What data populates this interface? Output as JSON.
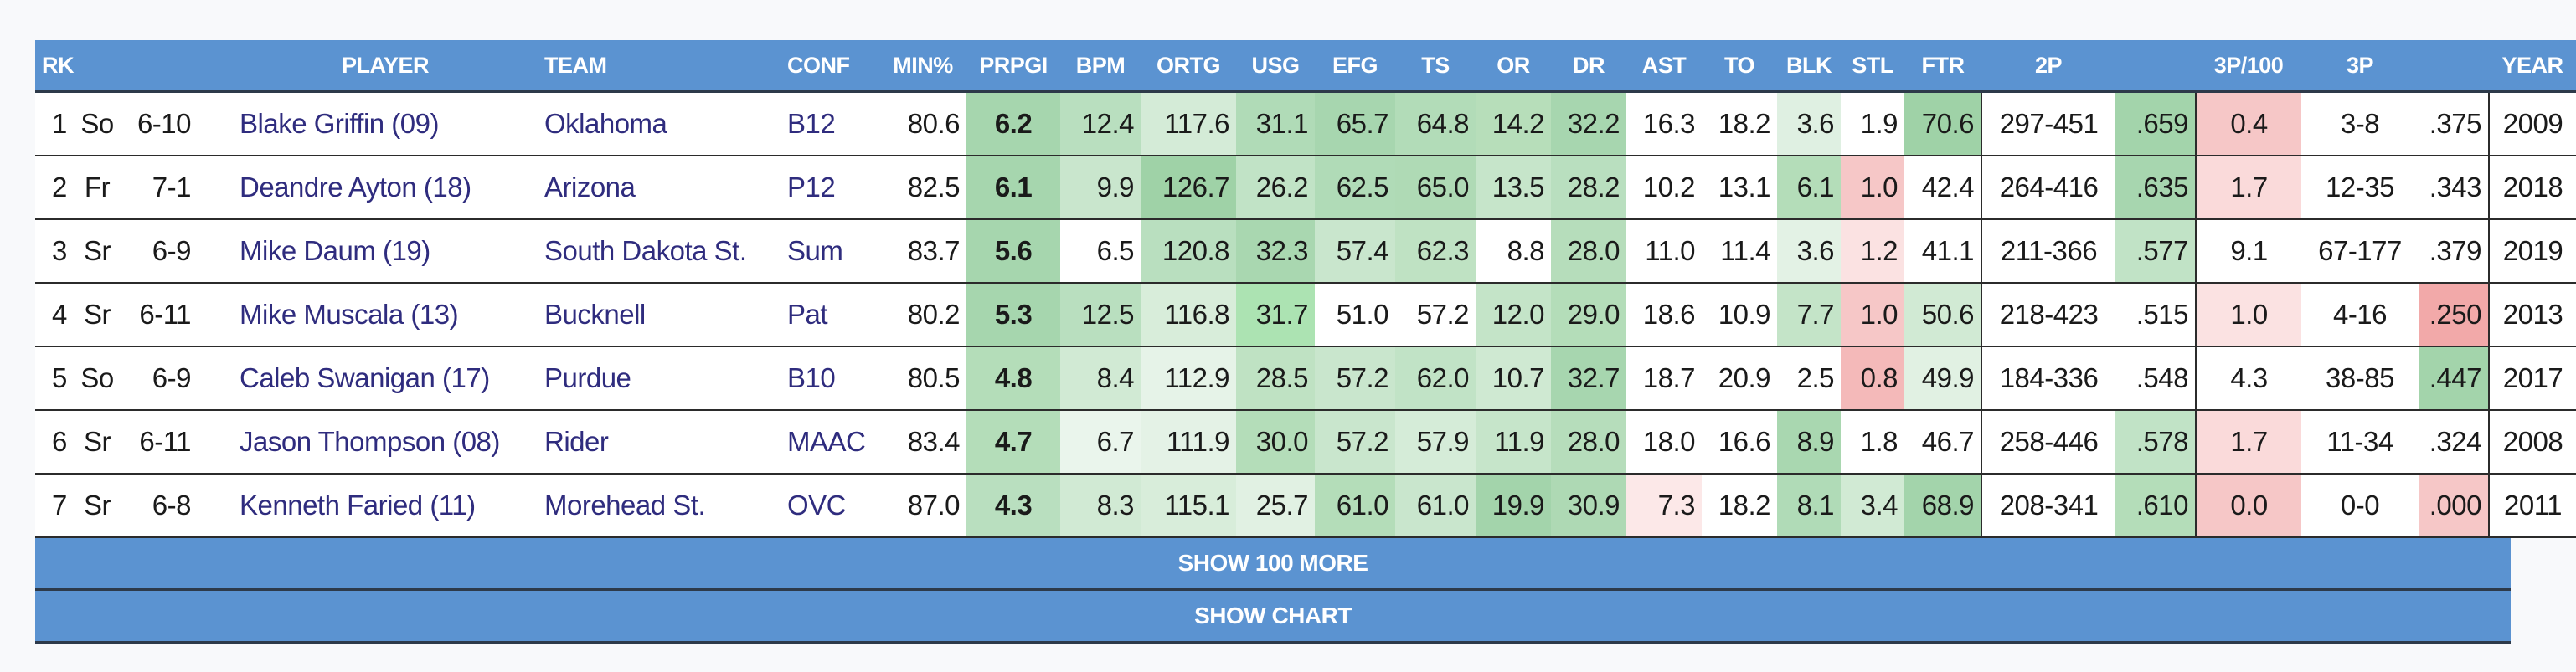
{
  "headers": [
    "RK",
    "PLAYER",
    "TEAM",
    "CONF",
    "MIN%",
    "PRPGI",
    "BPM",
    "ORTG",
    "USG",
    "EFG",
    "TS",
    "OR",
    "DR",
    "AST",
    "TO",
    "BLK",
    "STL",
    "FTR",
    "2P",
    "",
    "3P/100",
    "3P",
    "",
    "YEAR"
  ],
  "rows": [
    {
      "rk": "1",
      "cls": "So",
      "ht": "6-10",
      "player": "Blake Griffin (09)",
      "team": "Oklahoma",
      "conf": "B12",
      "min": "80.6",
      "prpg": "6.2",
      "bpm": "12.4",
      "ortg": "117.6",
      "usg": "31.1",
      "efg": "65.7",
      "ts": "64.8",
      "or": "14.2",
      "dr": "32.2",
      "ast": "16.3",
      "to": "18.2",
      "blk": "3.6",
      "stl": "1.9",
      "ftr": "70.6",
      "twop": "297-451",
      "twopct": ".659",
      "threep100": "0.4",
      "threep": "3-8",
      "threepct": ".375",
      "year": "2009"
    },
    {
      "rk": "2",
      "cls": "Fr",
      "ht": "7-1",
      "player": "Deandre Ayton (18)",
      "team": "Arizona",
      "conf": "P12",
      "min": "82.5",
      "prpg": "6.1",
      "bpm": "9.9",
      "ortg": "126.7",
      "usg": "26.2",
      "efg": "62.5",
      "ts": "65.0",
      "or": "13.5",
      "dr": "28.2",
      "ast": "10.2",
      "to": "13.1",
      "blk": "6.1",
      "stl": "1.0",
      "ftr": "42.4",
      "twop": "264-416",
      "twopct": ".635",
      "threep100": "1.7",
      "threep": "12-35",
      "threepct": ".343",
      "year": "2018"
    },
    {
      "rk": "3",
      "cls": "Sr",
      "ht": "6-9",
      "player": "Mike Daum (19)",
      "team": "South Dakota St.",
      "conf": "Sum",
      "min": "83.7",
      "prpg": "5.6",
      "bpm": "6.5",
      "ortg": "120.8",
      "usg": "32.3",
      "efg": "57.4",
      "ts": "62.3",
      "or": "8.8",
      "dr": "28.0",
      "ast": "11.0",
      "to": "11.4",
      "blk": "3.6",
      "stl": "1.2",
      "ftr": "41.1",
      "twop": "211-366",
      "twopct": ".577",
      "threep100": "9.1",
      "threep": "67-177",
      "threepct": ".379",
      "year": "2019"
    },
    {
      "rk": "4",
      "cls": "Sr",
      "ht": "6-11",
      "player": "Mike Muscala (13)",
      "team": "Bucknell",
      "conf": "Pat",
      "min": "80.2",
      "prpg": "5.3",
      "bpm": "12.5",
      "ortg": "116.8",
      "usg": "31.7",
      "efg": "51.0",
      "ts": "57.2",
      "or": "12.0",
      "dr": "29.0",
      "ast": "18.6",
      "to": "10.9",
      "blk": "7.7",
      "stl": "1.0",
      "ftr": "50.6",
      "twop": "218-423",
      "twopct": ".515",
      "threep100": "1.0",
      "threep": "4-16",
      "threepct": ".250",
      "year": "2013"
    },
    {
      "rk": "5",
      "cls": "So",
      "ht": "6-9",
      "player": "Caleb Swanigan (17)",
      "team": "Purdue",
      "conf": "B10",
      "min": "80.5",
      "prpg": "4.8",
      "bpm": "8.4",
      "ortg": "112.9",
      "usg": "28.5",
      "efg": "57.2",
      "ts": "62.0",
      "or": "10.7",
      "dr": "32.7",
      "ast": "18.7",
      "to": "20.9",
      "blk": "2.5",
      "stl": "0.8",
      "ftr": "49.9",
      "twop": "184-336",
      "twopct": ".548",
      "threep100": "4.3",
      "threep": "38-85",
      "threepct": ".447",
      "year": "2017"
    },
    {
      "rk": "6",
      "cls": "Sr",
      "ht": "6-11",
      "player": "Jason Thompson (08)",
      "team": "Rider",
      "conf": "MAAC",
      "min": "83.4",
      "prpg": "4.7",
      "bpm": "6.7",
      "ortg": "111.9",
      "usg": "30.0",
      "efg": "57.2",
      "ts": "57.9",
      "or": "11.9",
      "dr": "28.0",
      "ast": "18.0",
      "to": "16.6",
      "blk": "8.9",
      "stl": "1.8",
      "ftr": "46.7",
      "twop": "258-446",
      "twopct": ".578",
      "threep100": "1.7",
      "threep": "11-34",
      "threepct": ".324",
      "year": "2008"
    },
    {
      "rk": "7",
      "cls": "Sr",
      "ht": "6-8",
      "player": "Kenneth Faried (11)",
      "team": "Morehead St.",
      "conf": "OVC",
      "min": "87.0",
      "prpg": "4.3",
      "bpm": "8.3",
      "ortg": "115.1",
      "usg": "25.7",
      "efg": "61.0",
      "ts": "61.0",
      "or": "19.9",
      "dr": "30.9",
      "ast": "7.3",
      "to": "18.2",
      "blk": "8.1",
      "stl": "3.4",
      "ftr": "68.9",
      "twop": "208-341",
      "twopct": ".610",
      "threep100": "0.0",
      "threep": "0-0",
      "threepct": ".000",
      "year": "2011"
    }
  ],
  "cell_colors": [
    {
      "prpg": "#a6d6ae",
      "bpm": "#b9dfbf",
      "ortg": "#d4ebd7",
      "usg": "#b0dbb7",
      "efg": "#a7d6af",
      "ts": "#b2dcb8",
      "or": "#b7deba",
      "dr": "#a7d6af",
      "ast": "#ffffff",
      "to": "#ffffff",
      "blk": "#dff0e2",
      "stl": "#ffffff",
      "ftr": "#9fd2a7",
      "twopct": "#a3d4ab",
      "threep100": "#f6c7c7",
      "threepct": "#ffffff"
    },
    {
      "prpg": "#a6d6ae",
      "bpm": "#c9e6cd",
      "ortg": "#9fd2a7",
      "usg": "#c1e3c6",
      "efg": "#b0dbb7",
      "ts": "#afdab5",
      "or": "#c6e5ca",
      "dr": "#b9dfbf",
      "ast": "#ffffff",
      "to": "#ffffff",
      "blk": "#b4ddb9",
      "stl": "#f6c7c7",
      "ftr": "#ffffff",
      "twopct": "#a7d6af",
      "threep100": "#fadada",
      "threepct": "#ffffff"
    },
    {
      "prpg": "#a6d6ae",
      "bpm": "#ffffff",
      "ortg": "#b9dfbf",
      "usg": "#a9d7b0",
      "efg": "#c9e6cd",
      "ts": "#bfe2c3",
      "or": "#ffffff",
      "dr": "#b6ddbb",
      "ast": "#ffffff",
      "to": "#ffffff",
      "blk": "#e3f2e5",
      "stl": "#fbe2e2",
      "ftr": "#ffffff",
      "twopct": "#c1e3c6",
      "threep100": "#ffffff",
      "threepct": "#ffffff"
    },
    {
      "prpg": "#a6d6ae",
      "bpm": "#b9dfbf",
      "ortg": "#d8edda",
      "usg": "#ace3b2",
      "efg": "#ffffff",
      "ts": "#ffffff",
      "or": "#c4e4c8",
      "dr": "#b4ddb9",
      "ast": "#ffffff",
      "to": "#ffffff",
      "blk": "#c4e4c8",
      "stl": "#f6c7c7",
      "ftr": "#d1eaD4",
      "twopct": "#ffffff",
      "threep100": "#fbe2e2",
      "threepct": "#f2a9a9"
    },
    {
      "prpg": "#b4ddb9",
      "bpm": "#d1ead4",
      "ortg": "#e6f3e8",
      "usg": "#bfe2c3",
      "efg": "#c9e6cd",
      "ts": "#c1e3c6",
      "or": "#cfe9d2",
      "dr": "#a7d6af",
      "ast": "#ffffff",
      "to": "#ffffff",
      "blk": "#ffffff",
      "stl": "#f4b9b9",
      "ftr": "#e1f1e3",
      "twopct": "#ffffff",
      "threep100": "#ffffff",
      "threepct": "#a3d4ab"
    },
    {
      "prpg": "#b4ddb9",
      "bpm": "#eaf5ec",
      "ortg": "#e4f2e6",
      "usg": "#b4ddb9",
      "efg": "#c9e6cd",
      "ts": "#d5ecd8",
      "or": "#c6e5ca",
      "dr": "#b6ddbb",
      "ast": "#ffffff",
      "to": "#ffffff",
      "blk": "#a9d7b0",
      "stl": "#ffffff",
      "ftr": "#ffffff",
      "twopct": "#c1e3c6",
      "threep100": "#fadada",
      "threepct": "#ffffff"
    },
    {
      "prpg": "#b9dfbf",
      "bpm": "#d1ead4",
      "ortg": "#d8edda",
      "usg": "#e1f1e3",
      "efg": "#b4ddb9",
      "ts": "#c9e6cd",
      "or": "#a3d4ab",
      "dr": "#aed9b4",
      "ast": "#fce8e8",
      "to": "#ffffff",
      "blk": "#b0dbb7",
      "stl": "#d1ead4",
      "ftr": "#a3d4ab",
      "twopct": "#b4ddb9",
      "threep100": "#f6c7c7",
      "threepct": "#f6c7c7"
    }
  ],
  "buttons": {
    "show_more": "SHOW 100 MORE",
    "show_chart": "SHOW CHART"
  }
}
